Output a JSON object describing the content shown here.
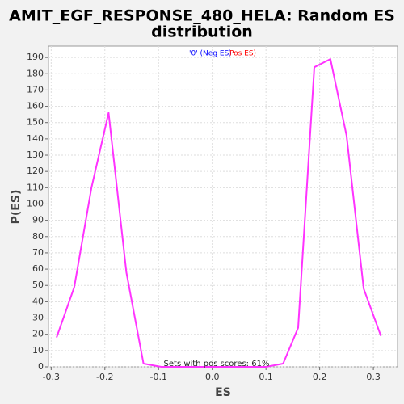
{
  "chart_data": {
    "type": "line",
    "title_line1": "AMIT_EGF_RESPONSE_480_HELA: Random ES",
    "title_line2": "distribution",
    "xlabel": "ES",
    "ylabel": "P(ES)",
    "xlim": [
      -0.305,
      0.345
    ],
    "ylim": [
      0,
      197
    ],
    "x_ticks": [
      -0.3,
      -0.2,
      -0.1,
      0.0,
      0.1,
      0.2,
      0.3
    ],
    "x_tick_labels": [
      "-0.3",
      "-0.2",
      "-0.1",
      "0.0",
      "0.1",
      "0.2",
      "0.3"
    ],
    "y_ticks": [
      0,
      10,
      20,
      30,
      40,
      50,
      60,
      70,
      80,
      90,
      100,
      110,
      120,
      130,
      140,
      150,
      160,
      170,
      180,
      190
    ],
    "grid": true,
    "legend": {
      "placement": "top-center",
      "entries": [
        {
          "label": "'0' (Neg ES)",
          "color": "#0000ff"
        },
        {
          "label": "Pos ES)",
          "color": "#ff0000"
        }
      ]
    },
    "annotation": "Sets with pos scores: 61%",
    "series": [
      {
        "color": "#ff33ff",
        "x": [
          -0.29,
          -0.257,
          -0.225,
          -0.193,
          -0.16,
          -0.128,
          -0.095,
          -0.063,
          -0.03,
          0.002,
          0.035,
          0.067,
          0.1,
          0.132,
          0.16,
          0.19,
          0.22,
          0.25,
          0.282,
          0.314
        ],
        "y": [
          18,
          49,
          110,
          156,
          58,
          2,
          0,
          0,
          0,
          0,
          0,
          0,
          0,
          2,
          24,
          184,
          189,
          142,
          48,
          19
        ]
      }
    ]
  }
}
